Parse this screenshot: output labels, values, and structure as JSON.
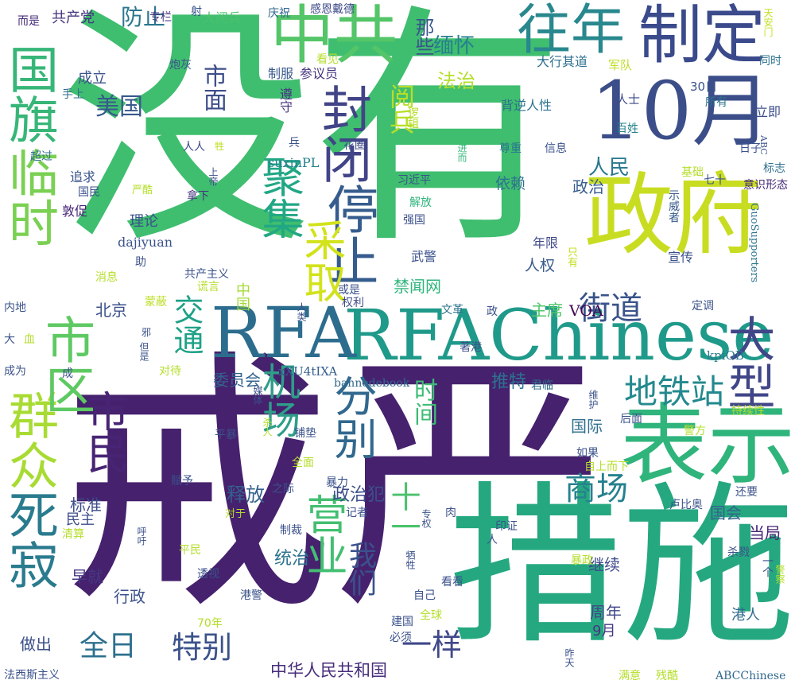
{
  "words": [
    {
      "text": "戒严",
      "color": "#46216e"
    },
    {
      "text": "没有",
      "color": "#3fbe6f"
    },
    {
      "text": "措施",
      "color": "#25a880"
    },
    {
      "text": "RFAChinese",
      "color": "#1f9a8a"
    },
    {
      "text": "RFA",
      "color": "#2c6d8e"
    },
    {
      "text": "政府",
      "color": "#c8dd22"
    },
    {
      "text": "10月",
      "color": "#3b4e89"
    },
    {
      "text": "表示",
      "color": "#2fb47c"
    },
    {
      "text": "制定",
      "color": "#3a4a8b"
    },
    {
      "text": "中共",
      "color": "#54c568"
    },
    {
      "text": "往年",
      "color": "#29888e"
    },
    {
      "text": "国旗",
      "color": "#37b678"
    },
    {
      "text": "临时",
      "color": "#7ad052"
    },
    {
      "text": "死寂",
      "color": "#2a7b8e"
    },
    {
      "text": "群众",
      "color": "#a8db33"
    },
    {
      "text": "市区",
      "color": "#5ec962"
    },
    {
      "text": "封闭",
      "color": "#414487"
    },
    {
      "text": "停止",
      "color": "#365c8d"
    },
    {
      "text": "采取",
      "color": "#d2e21b"
    },
    {
      "text": "聚集",
      "color": "#22a785"
    },
    {
      "text": "大型",
      "color": "#404688"
    },
    {
      "text": "市民",
      "color": "#482475"
    },
    {
      "text": "机场",
      "color": "#2e9e89"
    },
    {
      "text": "分别",
      "color": "#31688e"
    },
    {
      "text": "营业",
      "color": "#43bf71"
    },
    {
      "text": "地铁站",
      "color": "#23898e"
    },
    {
      "text": "商场",
      "color": "#26818e"
    },
    {
      "text": "我们",
      "color": "#3b518b"
    },
    {
      "text": "街道",
      "color": "#3a538b"
    },
    {
      "text": "交通",
      "color": "#1fa188"
    },
    {
      "text": "美国",
      "color": "#38598c"
    },
    {
      "text": "市面",
      "color": "#3d4e8a"
    },
    {
      "text": "防止",
      "color": "#2a768e"
    },
    {
      "text": "时间",
      "color": "#3dbc74"
    },
    {
      "text": "特别",
      "color": "#3b528b"
    },
    {
      "text": "全日",
      "color": "#2d708e"
    },
    {
      "text": "一样",
      "color": "#3f4889"
    },
    {
      "text": "人民",
      "color": "#2a788e"
    },
    {
      "text": "政治犯",
      "color": "#3d4e8a"
    },
    {
      "text": "释放",
      "color": "#34608d"
    },
    {
      "text": "十一",
      "color": "#4cc26c"
    },
    {
      "text": "阅兵",
      "color": "#b8de29"
    },
    {
      "text": "中华人民共和国",
      "color": "#472d7b"
    },
    {
      "text": "缅怀",
      "color": "#277f8e"
    },
    {
      "text": "法治",
      "color": "#b5de2b"
    },
    {
      "text": "那些",
      "color": "#3a548c"
    },
    {
      "text": "推特",
      "color": "#2c728e"
    },
    {
      "text": "政治",
      "color": "#365d8d"
    },
    {
      "text": "人权",
      "color": "#375b8d"
    },
    {
      "text": "依赖",
      "color": "#2d718e"
    },
    {
      "text": "继续",
      "color": "#3e4989"
    },
    {
      "text": "统治",
      "color": "#2c728e"
    },
    {
      "text": "港人",
      "color": "#2f6b8e"
    },
    {
      "text": "国际",
      "color": "#2e6e8e"
    },
    {
      "text": "当局",
      "color": "#482576"
    },
    {
      "text": "国会",
      "color": "#33638d"
    },
    {
      "text": "周年",
      "color": "#3f4788"
    },
    {
      "text": "9月",
      "color": "#453781"
    },
    {
      "text": "做出",
      "color": "#3c4f8a"
    },
    {
      "text": "行政",
      "color": "#3b528b"
    },
    {
      "text": "早就",
      "color": "#453882"
    },
    {
      "text": "标准",
      "color": "#3d4d8a"
    },
    {
      "text": "民主",
      "color": "#3e4c8a"
    },
    {
      "text": "主席",
      "color": "#52c569"
    },
    {
      "text": "VOA",
      "color": "#440154"
    },
    {
      "text": "禁闻网",
      "color": "#2fb47c"
    },
    {
      "text": "北京",
      "color": "#3b528b"
    },
    {
      "text": "理论",
      "color": "#3a538b"
    },
    {
      "text": "委员会",
      "color": "#33638d"
    },
    {
      "text": "成立",
      "color": "#3a538b"
    },
    {
      "text": "共产党",
      "color": "#46337e"
    },
    {
      "text": "suxinPL",
      "color": "#26818e"
    },
    {
      "text": "dajiyuan",
      "color": "#3b528b"
    },
    {
      "text": "GuoSupporters",
      "color": "#2b758e"
    },
    {
      "text": "kpiOB",
      "color": "#2a788e"
    },
    {
      "text": "xXU4tIXA",
      "color": "#365d8d"
    },
    {
      "text": "bannedebook",
      "color": "#31688e"
    },
    {
      "text": "ABCChinese",
      "color": "#31688e"
    },
    {
      "text": "中国",
      "color": "#a5db36"
    },
    {
      "text": "专栏",
      "color": "#46327e"
    },
    {
      "text": "炮灰",
      "color": "#3b528b"
    },
    {
      "text": "大阅兵",
      "color": "#4ac16d"
    },
    {
      "text": "庆祝",
      "color": "#31688e"
    },
    {
      "text": "感恩戴德",
      "color": "#3e4989"
    },
    {
      "text": "射",
      "color": "#3b528b"
    },
    {
      "text": "天安门",
      "color": "#c5e021"
    },
    {
      "text": "而是",
      "color": "#472c7a"
    },
    {
      "text": "大行其道",
      "color": "#2e6f8e"
    },
    {
      "text": "军队",
      "color": "#bddf26"
    },
    {
      "text": "同时",
      "color": "#2c718e"
    },
    {
      "text": "看见",
      "color": "#b5de2b"
    },
    {
      "text": "参议员",
      "color": "#46337f"
    },
    {
      "text": "制服",
      "color": "#38598c"
    },
    {
      "text": "遵守",
      "color": "#453581"
    },
    {
      "text": "逻辑",
      "color": "#b5de2b"
    },
    {
      "text": "背逆人性",
      "color": "#2c728e"
    },
    {
      "text": "手上",
      "color": "#2e6e8e"
    },
    {
      "text": "超过",
      "color": "#2e6f8e"
    },
    {
      "text": "人人",
      "color": "#3f4889"
    },
    {
      "text": "牲",
      "color": "#bddf26"
    },
    {
      "text": "兵",
      "color": "#3b528b"
    },
    {
      "text": "花圈",
      "color": "#3e4989"
    },
    {
      "text": "进而",
      "color": "#35b779"
    },
    {
      "text": "尊重",
      "color": "#2a768e"
    },
    {
      "text": "信息",
      "color": "#3b528b"
    },
    {
      "text": "人士",
      "color": "#3e4a89"
    },
    {
      "text": "所有",
      "color": "#2c728e"
    },
    {
      "text": "立即",
      "color": "#3d4e8a"
    },
    {
      "text": "30日",
      "color": "#3b528b"
    },
    {
      "text": "百姓",
      "color": "#26828e"
    },
    {
      "text": "ABC",
      "color": "#3b528b"
    },
    {
      "text": "日子",
      "color": "#3a548c"
    },
    {
      "text": "追求",
      "color": "#3a538b"
    },
    {
      "text": "国民",
      "color": "#3b528b"
    },
    {
      "text": "敦促",
      "color": "#482677"
    },
    {
      "text": "严酷",
      "color": "#b5de2b"
    },
    {
      "text": "上帝",
      "color": "#3e4c8a"
    },
    {
      "text": "拿下",
      "color": "#46337f"
    },
    {
      "text": "解放",
      "color": "#2fb47c"
    },
    {
      "text": "习近平",
      "color": "#3b528b"
    },
    {
      "text": "强国",
      "color": "#3b528b"
    },
    {
      "text": "基础",
      "color": "#b5de2b"
    },
    {
      "text": "示威者",
      "color": "#38598c"
    },
    {
      "text": "七十",
      "color": "#3b528b"
    },
    {
      "text": "标志",
      "color": "#2e6e8e"
    },
    {
      "text": "意识形态",
      "color": "#472a7a"
    },
    {
      "text": "年限",
      "color": "#3f4889"
    },
    {
      "text": "宣传",
      "color": "#3b528b"
    },
    {
      "text": "只有",
      "color": "#c5e021"
    },
    {
      "text": "助",
      "color": "#3b528b"
    },
    {
      "text": "消息",
      "color": "#b5de2b"
    },
    {
      "text": "共产主义",
      "color": "#3b528b"
    },
    {
      "text": "谎言",
      "color": "#b5de2b"
    },
    {
      "text": "武警",
      "color": "#3b528b"
    },
    {
      "text": "内地",
      "color": "#3a548c"
    },
    {
      "text": "蒙蔽",
      "color": "#bddf26"
    },
    {
      "text": "或是",
      "color": "#3b528b"
    },
    {
      "text": "权利",
      "color": "#3e4c8a"
    },
    {
      "text": "人类",
      "color": "#3b528b"
    },
    {
      "text": "文革",
      "color": "#2c728e"
    },
    {
      "text": "政",
      "color": "#3b528b"
    },
    {
      "text": "定调",
      "color": "#3b528b"
    },
    {
      "text": "大",
      "color": "#3b528b"
    },
    {
      "text": "血",
      "color": "#b5de2b"
    },
    {
      "text": "成为",
      "color": "#3b528b"
    },
    {
      "text": "但是",
      "color": "#3b528b"
    },
    {
      "text": "邪",
      "color": "#3b528b"
    },
    {
      "text": "对待",
      "color": "#b5de2b"
    },
    {
      "text": "成",
      "color": "#3b528b"
    },
    {
      "text": "著港",
      "color": "#3b528b"
    },
    {
      "text": "君临",
      "color": "#2e6e8e"
    },
    {
      "text": "媒体",
      "color": "#3b528b"
    },
    {
      "text": "维护",
      "color": "#3b528b"
    },
    {
      "text": "后面",
      "color": "#3b528b"
    },
    {
      "text": "持续性",
      "color": "#b5de2b"
    },
    {
      "text": "警方",
      "color": "#b5de2b"
    },
    {
      "text": "平暴",
      "color": "#3b528b"
    },
    {
      "text": "杀人",
      "color": "#b5de2b"
    },
    {
      "text": "铺垫",
      "color": "#3b528b"
    },
    {
      "text": "如果",
      "color": "#3b528b"
    },
    {
      "text": "自上而下",
      "color": "#b5de2b"
    },
    {
      "text": "全面",
      "color": "#b5de2b"
    },
    {
      "text": "之际",
      "color": "#3b528b"
    },
    {
      "text": "赋予",
      "color": "#3b528b"
    },
    {
      "text": "暴力",
      "color": "#3b528b"
    },
    {
      "text": "对于",
      "color": "#b5de2b"
    },
    {
      "text": "记者",
      "color": "#3b528b"
    },
    {
      "text": "专权",
      "color": "#3b528b"
    },
    {
      "text": "肉",
      "color": "#3b528b"
    },
    {
      "text": "卢比奥",
      "color": "#3b528b"
    },
    {
      "text": "还要",
      "color": "#3b528b"
    },
    {
      "text": "清算",
      "color": "#b5de2b"
    },
    {
      "text": "印证",
      "color": "#3b528b"
    },
    {
      "text": "杀戮",
      "color": "#3b528b"
    },
    {
      "text": "制裁",
      "color": "#3b528b"
    },
    {
      "text": "人",
      "color": "#3b528b"
    },
    {
      "text": "呼吁",
      "color": "#3b528b"
    },
    {
      "text": "平民",
      "color": "#b5de2b"
    },
    {
      "text": "牺牲",
      "color": "#3b528b"
    },
    {
      "text": "暴政",
      "color": "#b5de2b"
    },
    {
      "text": "一个",
      "color": "#3b528b"
    },
    {
      "text": "警察",
      "color": "#b5de2b"
    },
    {
      "text": "透视",
      "color": "#3b528b"
    },
    {
      "text": "看看",
      "color": "#3b528b"
    },
    {
      "text": "港警",
      "color": "#3b528b"
    },
    {
      "text": "自己",
      "color": "#3b528b"
    },
    {
      "text": "70年",
      "color": "#b5de2b"
    },
    {
      "text": "建国",
      "color": "#3b528b"
    },
    {
      "text": "全球",
      "color": "#b5de2b"
    },
    {
      "text": "必须",
      "color": "#3b528b"
    },
    {
      "text": "昨天",
      "color": "#3b528b"
    },
    {
      "text": "法西斯主义",
      "color": "#3b528b"
    },
    {
      "text": "满意",
      "color": "#b5de2b"
    },
    {
      "text": "残酷",
      "color": "#b5de2b"
    }
  ]
}
